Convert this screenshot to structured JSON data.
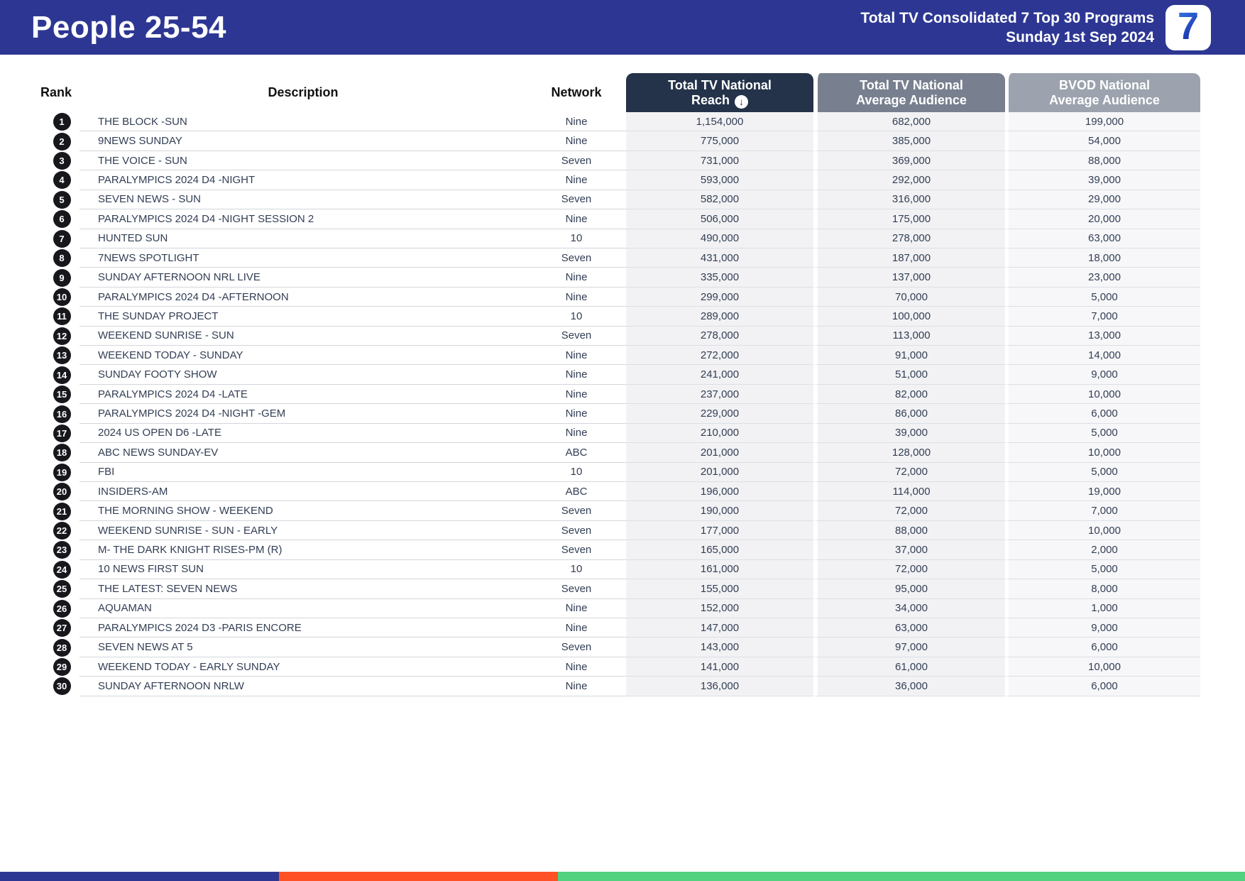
{
  "banner": {
    "title": "People 25-54",
    "subtitle_line1": "Total TV Consolidated 7 Top 30 Programs",
    "subtitle_line2": "Sunday 1st Sep 2024",
    "logo_glyph": "7"
  },
  "table": {
    "columns": {
      "rank": "Rank",
      "description": "Description",
      "network": "Network",
      "reach_line1": "Total TV National",
      "reach_line2": "Reach",
      "avg_line1": "Total TV National",
      "avg_line2": "Average Audience",
      "bvod_line1": "BVOD National",
      "bvod_line2": "Average Audience"
    },
    "sort_icon": "↓",
    "rows": [
      {
        "rank": "1",
        "description": "THE BLOCK -SUN",
        "network": "Nine",
        "reach": "1,154,000",
        "avg": "682,000",
        "bvod": "199,000"
      },
      {
        "rank": "2",
        "description": "9NEWS SUNDAY",
        "network": "Nine",
        "reach": "775,000",
        "avg": "385,000",
        "bvod": "54,000"
      },
      {
        "rank": "3",
        "description": "THE VOICE - SUN",
        "network": "Seven",
        "reach": "731,000",
        "avg": "369,000",
        "bvod": "88,000"
      },
      {
        "rank": "4",
        "description": "PARALYMPICS 2024 D4 -NIGHT",
        "network": "Nine",
        "reach": "593,000",
        "avg": "292,000",
        "bvod": "39,000"
      },
      {
        "rank": "5",
        "description": "SEVEN NEWS - SUN",
        "network": "Seven",
        "reach": "582,000",
        "avg": "316,000",
        "bvod": "29,000"
      },
      {
        "rank": "6",
        "description": "PARALYMPICS 2024 D4 -NIGHT SESSION 2",
        "network": "Nine",
        "reach": "506,000",
        "avg": "175,000",
        "bvod": "20,000"
      },
      {
        "rank": "7",
        "description": "HUNTED SUN",
        "network": "10",
        "reach": "490,000",
        "avg": "278,000",
        "bvod": "63,000"
      },
      {
        "rank": "8",
        "description": "7NEWS SPOTLIGHT",
        "network": "Seven",
        "reach": "431,000",
        "avg": "187,000",
        "bvod": "18,000"
      },
      {
        "rank": "9",
        "description": "SUNDAY AFTERNOON NRL LIVE",
        "network": "Nine",
        "reach": "335,000",
        "avg": "137,000",
        "bvod": "23,000"
      },
      {
        "rank": "10",
        "description": "PARALYMPICS 2024 D4 -AFTERNOON",
        "network": "Nine",
        "reach": "299,000",
        "avg": "70,000",
        "bvod": "5,000"
      },
      {
        "rank": "11",
        "description": "THE SUNDAY PROJECT",
        "network": "10",
        "reach": "289,000",
        "avg": "100,000",
        "bvod": "7,000"
      },
      {
        "rank": "12",
        "description": "WEEKEND SUNRISE - SUN",
        "network": "Seven",
        "reach": "278,000",
        "avg": "113,000",
        "bvod": "13,000"
      },
      {
        "rank": "13",
        "description": "WEEKEND TODAY - SUNDAY",
        "network": "Nine",
        "reach": "272,000",
        "avg": "91,000",
        "bvod": "14,000"
      },
      {
        "rank": "14",
        "description": "SUNDAY FOOTY SHOW",
        "network": "Nine",
        "reach": "241,000",
        "avg": "51,000",
        "bvod": "9,000"
      },
      {
        "rank": "15",
        "description": "PARALYMPICS 2024 D4 -LATE",
        "network": "Nine",
        "reach": "237,000",
        "avg": "82,000",
        "bvod": "10,000"
      },
      {
        "rank": "16",
        "description": "PARALYMPICS 2024 D4 -NIGHT -GEM",
        "network": "Nine",
        "reach": "229,000",
        "avg": "86,000",
        "bvod": "6,000"
      },
      {
        "rank": "17",
        "description": "2024 US OPEN D6 -LATE",
        "network": "Nine",
        "reach": "210,000",
        "avg": "39,000",
        "bvod": "5,000"
      },
      {
        "rank": "18",
        "description": "ABC NEWS SUNDAY-EV",
        "network": "ABC",
        "reach": "201,000",
        "avg": "128,000",
        "bvod": "10,000"
      },
      {
        "rank": "19",
        "description": "FBI",
        "network": "10",
        "reach": "201,000",
        "avg": "72,000",
        "bvod": "5,000"
      },
      {
        "rank": "20",
        "description": "INSIDERS-AM",
        "network": "ABC",
        "reach": "196,000",
        "avg": "114,000",
        "bvod": "19,000"
      },
      {
        "rank": "21",
        "description": "THE MORNING SHOW - WEEKEND",
        "network": "Seven",
        "reach": "190,000",
        "avg": "72,000",
        "bvod": "7,000"
      },
      {
        "rank": "22",
        "description": "WEEKEND SUNRISE - SUN - EARLY",
        "network": "Seven",
        "reach": "177,000",
        "avg": "88,000",
        "bvod": "10,000"
      },
      {
        "rank": "23",
        "description": "M- THE DARK KNIGHT RISES-PM (R)",
        "network": "Seven",
        "reach": "165,000",
        "avg": "37,000",
        "bvod": "2,000"
      },
      {
        "rank": "24",
        "description": "10 NEWS FIRST SUN",
        "network": "10",
        "reach": "161,000",
        "avg": "72,000",
        "bvod": "5,000"
      },
      {
        "rank": "25",
        "description": "THE LATEST: SEVEN NEWS",
        "network": "Seven",
        "reach": "155,000",
        "avg": "95,000",
        "bvod": "8,000"
      },
      {
        "rank": "26",
        "description": "AQUAMAN",
        "network": "Nine",
        "reach": "152,000",
        "avg": "34,000",
        "bvod": "1,000"
      },
      {
        "rank": "27",
        "description": "PARALYMPICS 2024 D3 -PARIS ENCORE",
        "network": "Nine",
        "reach": "147,000",
        "avg": "63,000",
        "bvod": "9,000"
      },
      {
        "rank": "28",
        "description": "SEVEN NEWS AT 5",
        "network": "Seven",
        "reach": "143,000",
        "avg": "97,000",
        "bvod": "6,000"
      },
      {
        "rank": "29",
        "description": "WEEKEND TODAY - EARLY SUNDAY",
        "network": "Nine",
        "reach": "141,000",
        "avg": "61,000",
        "bvod": "10,000"
      },
      {
        "rank": "30",
        "description": "SUNDAY AFTERNOON NRLW",
        "network": "Nine",
        "reach": "136,000",
        "avg": "36,000",
        "bvod": "6,000"
      }
    ]
  },
  "colors": {
    "banner_bg": "#2d3793",
    "reach_header_bg": "#243349",
    "avg_header_bg": "#78808f",
    "bvod_header_bg": "#9ca3ae",
    "rank_badge_bg": "#17181c",
    "footer_blue": "#2d3793",
    "footer_orange": "#ff5126",
    "footer_green": "#52d17f"
  }
}
